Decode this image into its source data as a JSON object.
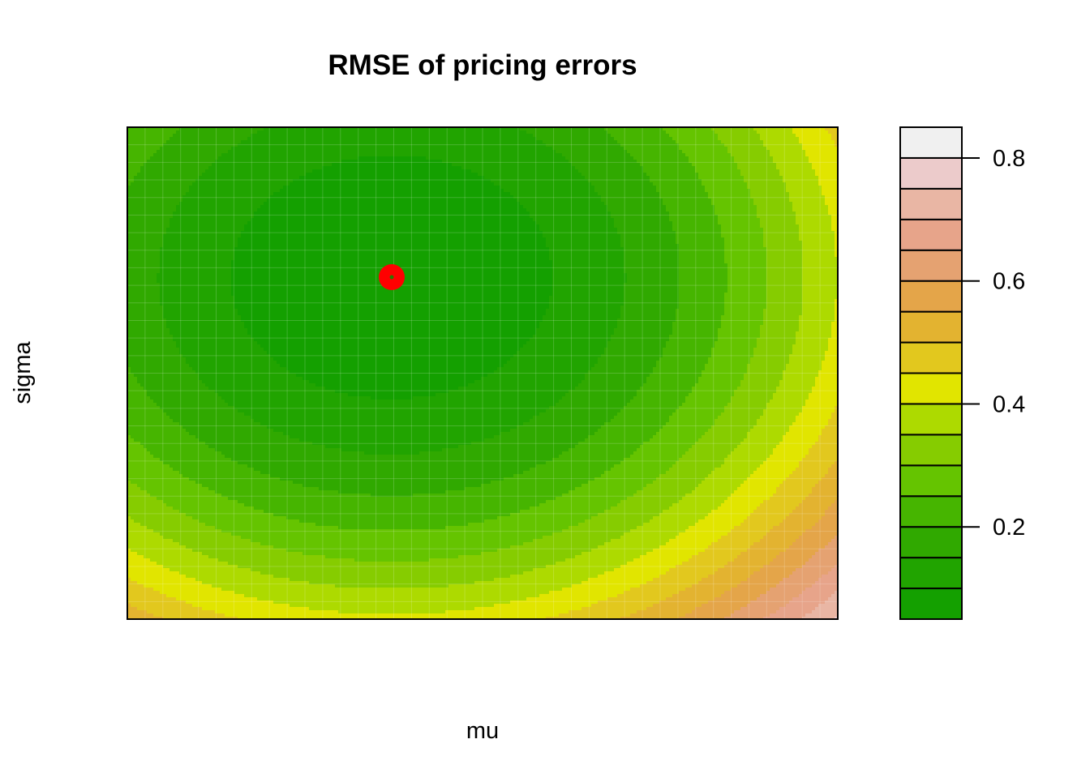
{
  "chart_data": {
    "type": "heatmap",
    "subtype": "filled-contour",
    "title": "RMSE of pricing errors",
    "xlabel": "mu",
    "ylabel": "sigma",
    "x_axis_ticks_shown": false,
    "y_axis_ticks_shown": false,
    "z_levels": [
      0.05,
      0.1,
      0.15,
      0.2,
      0.25,
      0.3,
      0.35,
      0.4,
      0.45,
      0.5,
      0.55,
      0.6,
      0.65,
      0.7,
      0.75,
      0.8,
      0.85
    ],
    "level_colors": [
      "#14A000",
      "#21A400",
      "#30A900",
      "#46B500",
      "#65C400",
      "#86CC00",
      "#ADDA00",
      "#E1E500",
      "#E2C81E",
      "#E3B330",
      "#E4A549",
      "#E5A271",
      "#E7A48A",
      "#E9B6A4",
      "#ECCBCB",
      "#F0F0F0"
    ],
    "colorbar_ticks": [
      0.2,
      0.4,
      0.6,
      0.8
    ],
    "colorbar_tick_labels": [
      "0.2",
      "0.4",
      "0.6",
      "0.8"
    ],
    "minimum_point": {
      "marker": "filled circle",
      "color": "#FF0000"
    },
    "legend_position": "right"
  }
}
